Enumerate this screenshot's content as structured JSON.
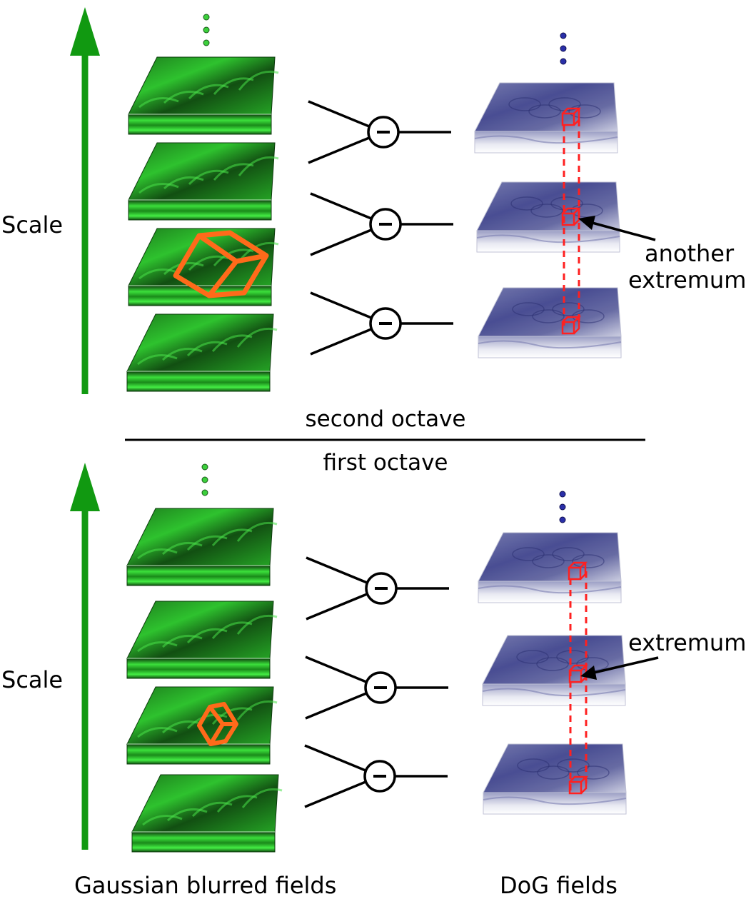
{
  "labels": {
    "scale_top": "Scale",
    "scale_bottom": "Scale",
    "second_octave": "second octave",
    "first_octave": "first octave",
    "another_extremum_line1": "another",
    "another_extremum_line2": "extremum",
    "extremum": "extremum",
    "gaussian_caption": "Gaussian blurred fields",
    "dog_caption": "DoG fields"
  },
  "colors": {
    "scale_arrow": "#119911",
    "gaussian_field": "#1fbf1f",
    "gaussian_field_dark": "#0a4a0a",
    "dog_field": "#3a3f8a",
    "dog_field_light": "#e6e7f0",
    "highlight_cube_gaussian": "#ff6a1a",
    "extremum_cube": "#ff2020",
    "minus_operator": "#000000",
    "dots_green": "#3ccf3c",
    "dots_blue": "#2a2fa8"
  },
  "octaves": [
    {
      "name": "second octave",
      "gaussian_slabs": 4,
      "dog_slabs": 3
    },
    {
      "name": "first octave",
      "gaussian_slabs": 4,
      "dog_slabs": 3
    }
  ],
  "operator_symbol": "−"
}
